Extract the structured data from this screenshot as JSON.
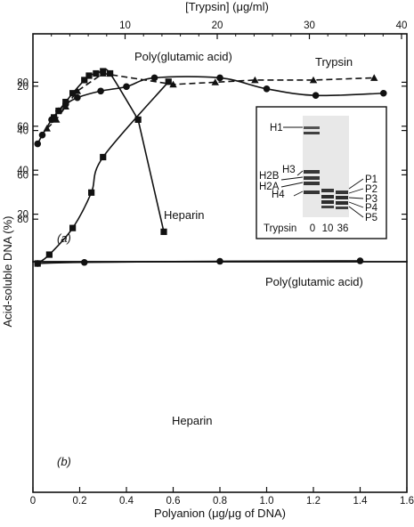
{
  "chart_data": [
    {
      "id": "a",
      "panel_label": "(a)",
      "type": "line",
      "ylabel": "Acid-soluble DNA (%)",
      "top_axis_label": "[Trypsin] (μg/ml)",
      "top_ticks": [
        10,
        20,
        30,
        40
      ],
      "top_xlim": [
        0,
        40
      ],
      "xlim": [
        0,
        1.6
      ],
      "ylim": [
        0,
        100
      ],
      "yticks": [
        20,
        40,
        60,
        80
      ],
      "series": [
        {
          "name": "Poly(glutamic acid)",
          "marker": "circle",
          "dash": "solid",
          "points": [
            [
              0.02,
              52
            ],
            [
              0.04,
              56
            ],
            [
              0.08,
              63
            ],
            [
              0.11,
              67
            ],
            [
              0.14,
              70
            ],
            [
              0.19,
              73
            ],
            [
              0.29,
              76
            ],
            [
              0.4,
              78
            ],
            [
              0.52,
              82
            ],
            [
              0.8,
              82
            ],
            [
              1.0,
              77
            ],
            [
              1.21,
              74
            ],
            [
              1.5,
              75
            ]
          ]
        },
        {
          "name": "Trypsin",
          "marker": "triangle",
          "dash": "dashed",
          "points": [
            [
              0.06,
              59
            ],
            [
              0.1,
              63
            ],
            [
              0.14,
              69
            ],
            [
              0.19,
              76
            ],
            [
              0.3,
              84
            ],
            [
              0.6,
              79
            ],
            [
              0.78,
              80
            ],
            [
              0.95,
              81
            ],
            [
              1.2,
              81
            ],
            [
              1.46,
              82
            ]
          ]
        },
        {
          "name": "Heparin",
          "marker": "square",
          "dash": "solid",
          "points": [
            [
              0.09,
              64
            ],
            [
              0.11,
              67
            ],
            [
              0.14,
              71
            ],
            [
              0.17,
              75
            ],
            [
              0.22,
              81
            ],
            [
              0.24,
              83
            ],
            [
              0.27,
              84
            ],
            [
              0.3,
              85
            ],
            [
              0.33,
              84
            ],
            [
              0.45,
              63
            ],
            [
              0.56,
              12
            ]
          ]
        }
      ],
      "inset": {
        "xlabel": "Trypsin",
        "lanes": [
          "0",
          "10",
          "36"
        ],
        "left_labels": [
          "H1",
          "H3",
          "H2B",
          "H2A",
          "H4"
        ],
        "right_labels": [
          "P1",
          "P2",
          "P3",
          "P4",
          "P5"
        ]
      }
    },
    {
      "id": "b",
      "panel_label": "(b)",
      "type": "line",
      "xlabel": "Polyanion (μg/μg of DNA)",
      "xticks": [
        0,
        0.2,
        0.4,
        0.6,
        0.8,
        1.0,
        1.2,
        1.4,
        1.6
      ],
      "xlim": [
        0,
        1.6
      ],
      "ylim": [
        0,
        100
      ],
      "yticks": [
        20,
        40,
        60,
        80
      ],
      "series": [
        {
          "name": "Poly(glutamic acid)",
          "marker": "circle",
          "dash": "solid",
          "points": [
            [
              0.02,
              100
            ],
            [
              0.22,
              99.5
            ],
            [
              0.8,
              99
            ],
            [
              1.4,
              98.8
            ]
          ]
        },
        {
          "name": "Heparin",
          "marker": "square",
          "dash": "solid",
          "points": [
            [
              0.02,
              100
            ],
            [
              0.07,
              96
            ],
            [
              0.17,
              84
            ],
            [
              0.25,
              68
            ],
            [
              0.3,
              52
            ],
            [
              0.58,
              18
            ]
          ]
        }
      ]
    }
  ]
}
